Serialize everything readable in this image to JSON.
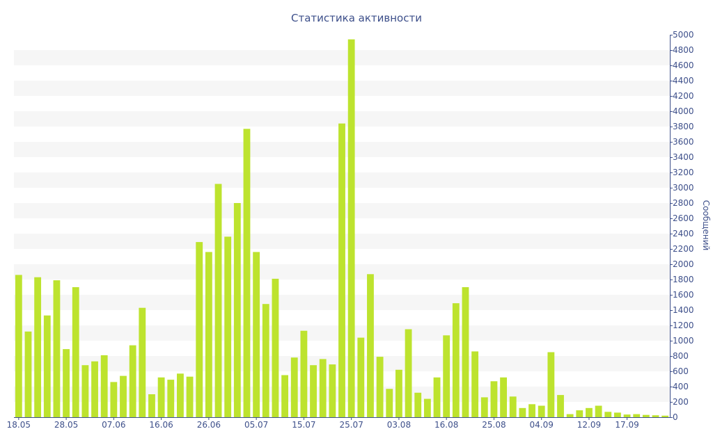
{
  "chart_data": {
    "type": "bar",
    "title": "Статистика активности",
    "ylabel": "Сообщений",
    "xlabel": "",
    "ylim": [
      0,
      5000
    ],
    "y_tick_step": 200,
    "y_axis_side": "right",
    "grid": "alternating horizontal bands",
    "colors": {
      "bar": "#bde32e",
      "text": "#3d4f8a",
      "band": "#f6f6f6",
      "axis": "#3d4f8a"
    },
    "x_tick_labels": [
      "18.05",
      "28.05",
      "07.06",
      "16.06",
      "26.06",
      "05.07",
      "15.07",
      "25.07",
      "03.08",
      "16.08",
      "25.08",
      "04.09",
      "12.09",
      "17.09"
    ],
    "x_tick_indices": [
      0,
      5,
      10,
      15,
      20,
      25,
      30,
      35,
      40,
      45,
      50,
      55,
      60,
      64
    ],
    "values": [
      1860,
      1120,
      1830,
      1330,
      1790,
      890,
      1700,
      680,
      730,
      810,
      460,
      540,
      940,
      1430,
      300,
      520,
      490,
      570,
      530,
      2290,
      2160,
      3050,
      2360,
      2800,
      3770,
      2160,
      1480,
      1810,
      550,
      780,
      1130,
      680,
      760,
      690,
      3840,
      4940,
      1040,
      1870,
      790,
      370,
      620,
      1150,
      320,
      240,
      520,
      1070,
      1490,
      1700,
      860,
      260,
      470,
      520,
      270,
      120,
      170,
      150,
      850,
      290,
      40,
      90,
      120,
      150,
      70,
      60,
      35,
      40,
      30,
      25,
      20
    ]
  }
}
